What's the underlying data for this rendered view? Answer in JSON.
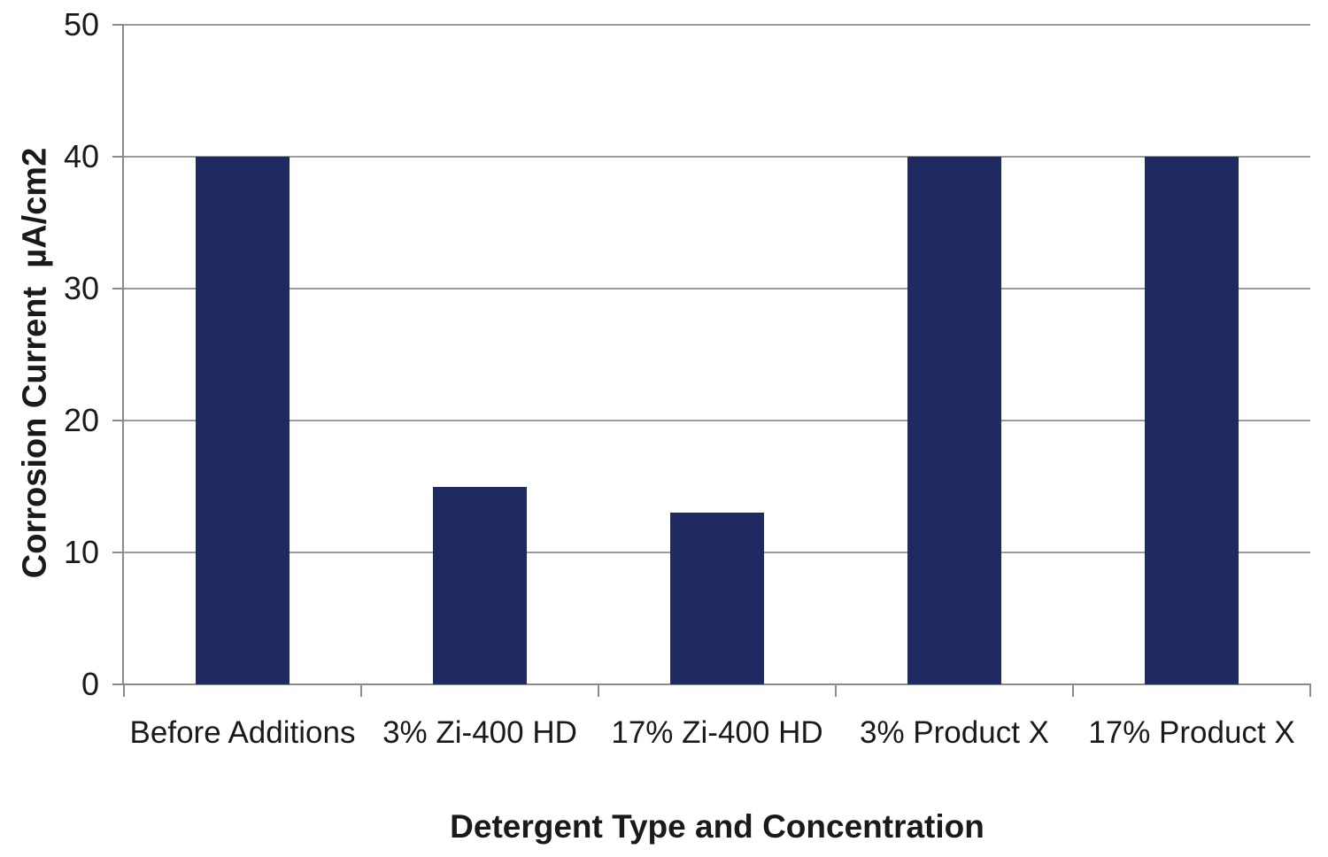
{
  "chart_data": {
    "type": "bar",
    "title": "",
    "categories": [
      "Before Additions",
      "3% Zi-400 HD",
      "17% Zi-400 HD",
      "3% Product X",
      "17% Product X"
    ],
    "values": [
      40,
      15,
      13,
      40,
      40
    ],
    "xlabel": "Detergent Type and Concentration",
    "ylabel": "Corrosion Current  µA/cm2",
    "ylim": [
      0,
      50
    ],
    "yticks": [
      0,
      10,
      20,
      30,
      40,
      50
    ],
    "grid": "horizontal",
    "legend": "none",
    "colors": {
      "bar": "#1f2a63",
      "axis": "#8a8a8a",
      "gridline": "#9b9b9b",
      "text": "#1a1a1a",
      "background": "#ffffff"
    }
  }
}
